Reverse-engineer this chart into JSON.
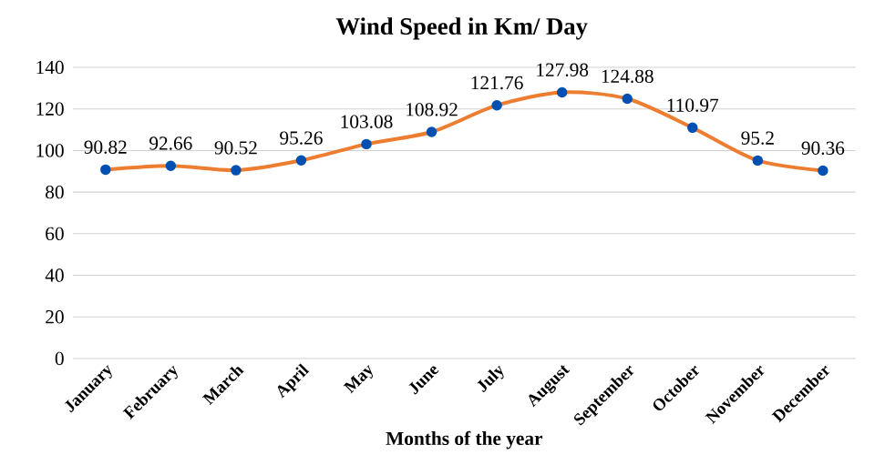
{
  "chart_data": {
    "type": "line",
    "title": "Wind Speed in Km/ Day",
    "xlabel": "Months of the year",
    "categories": [
      "January",
      "February",
      "March",
      "April",
      "May",
      "June",
      "July",
      "August",
      "September",
      "October",
      "November",
      "December"
    ],
    "series": [
      {
        "color": "#ed7d31",
        "values": [
          90.82,
          92.66,
          90.52,
          95.26,
          103.08,
          108.92,
          121.76,
          127.98,
          124.88,
          110.97,
          95.2,
          90.36
        ]
      }
    ],
    "ylim": [
      0,
      140
    ],
    "yticks": [
      0,
      20,
      40,
      60,
      80,
      100,
      120,
      140
    ],
    "grid": "y",
    "data_labels": true,
    "marker": "circle",
    "line_style": "solid"
  }
}
